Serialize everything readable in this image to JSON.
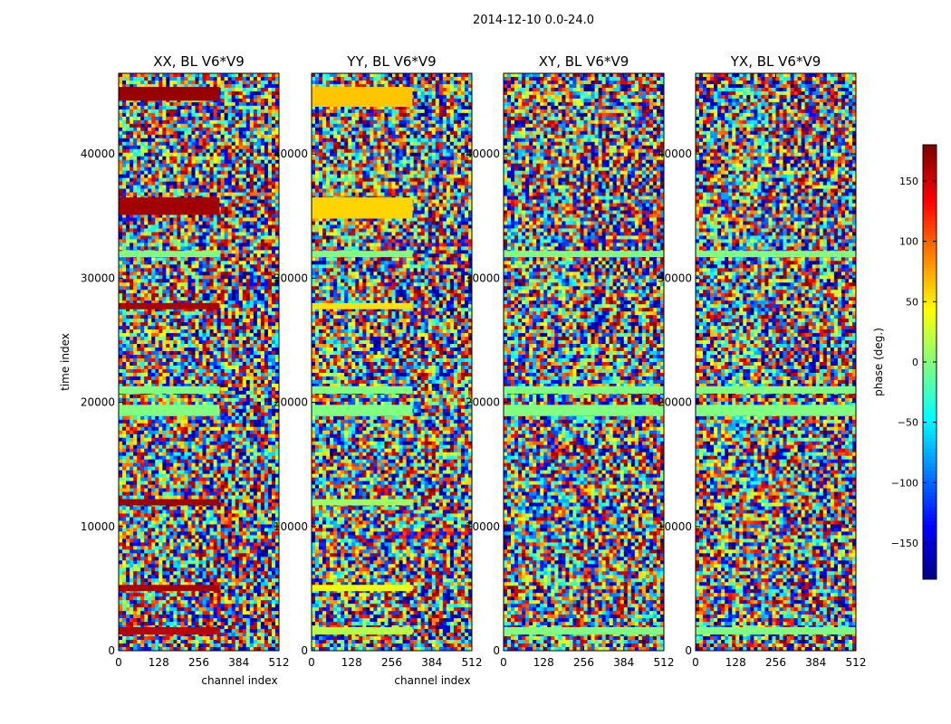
{
  "suptitle": "2014-12-10 0.0-24.0",
  "chart_data": [
    {
      "type": "heatmap",
      "title": "XX, BL V6*V9",
      "xlabel": "channel index",
      "ylabel": "time index",
      "xlim": [
        0,
        512
      ],
      "ylim": [
        0,
        46500
      ],
      "xticks": [
        0,
        128,
        256,
        384,
        512
      ],
      "yticks": [
        0,
        10000,
        20000,
        30000,
        40000
      ],
      "bands": [
        {
          "t0": 44300,
          "t1": 45400,
          "value": 172
        },
        {
          "t0": 35100,
          "t1": 36500,
          "value": 168
        },
        {
          "t0": 31700,
          "t1": 32200,
          "value": 0
        },
        {
          "t0": 27500,
          "t1": 28000,
          "value": 165
        },
        {
          "t0": 20700,
          "t1": 21300,
          "value": 0
        },
        {
          "t0": 18900,
          "t1": 19800,
          "value": 0
        },
        {
          "t0": 11700,
          "t1": 12200,
          "value": 170
        },
        {
          "t0": 4800,
          "t1": 5300,
          "value": 165
        },
        {
          "t0": 1300,
          "t1": 1900,
          "value": 160
        }
      ]
    },
    {
      "type": "heatmap",
      "title": "YY, BL V6*V9",
      "xlabel": "channel index",
      "ylabel": "",
      "xlim": [
        0,
        512
      ],
      "ylim": [
        0,
        46500
      ],
      "xticks": [
        0,
        128,
        256,
        384,
        512
      ],
      "yticks": [
        0,
        10000,
        20000,
        30000,
        40000
      ],
      "bands": [
        {
          "t0": 43800,
          "t1": 45400,
          "value": 65
        },
        {
          "t0": 34800,
          "t1": 36500,
          "value": 60
        },
        {
          "t0": 31700,
          "t1": 32200,
          "value": 0
        },
        {
          "t0": 27500,
          "t1": 28000,
          "value": 55
        },
        {
          "t0": 20700,
          "t1": 21300,
          "value": 0
        },
        {
          "t0": 18900,
          "t1": 19800,
          "value": 0
        },
        {
          "t0": 11700,
          "t1": 12200,
          "value": 10
        },
        {
          "t0": 4800,
          "t1": 5300,
          "value": 40
        },
        {
          "t0": 1300,
          "t1": 1900,
          "value": 20
        }
      ]
    },
    {
      "type": "heatmap",
      "title": "XY, BL V6*V9",
      "xlabel": "",
      "ylabel": "",
      "xlim": [
        0,
        512
      ],
      "ylim": [
        0,
        46500
      ],
      "xticks": [
        0,
        128,
        256,
        384,
        512
      ],
      "yticks": [
        0,
        10000,
        20000,
        30000,
        40000
      ],
      "bands": [
        {
          "t0": 31700,
          "t1": 32200,
          "value": 0
        },
        {
          "t0": 20700,
          "t1": 21300,
          "value": 0
        },
        {
          "t0": 18900,
          "t1": 19800,
          "value": 0
        },
        {
          "t0": 1300,
          "t1": 1900,
          "value": 0
        }
      ]
    },
    {
      "type": "heatmap",
      "title": "YX, BL V6*V9",
      "xlabel": "",
      "ylabel": "",
      "xlim": [
        0,
        512
      ],
      "ylim": [
        0,
        46500
      ],
      "xticks": [
        0,
        128,
        256,
        384,
        512
      ],
      "yticks": [
        0,
        10000,
        20000,
        30000,
        40000
      ],
      "bands": [
        {
          "t0": 31700,
          "t1": 32200,
          "value": 0
        },
        {
          "t0": 20700,
          "t1": 21300,
          "value": 0
        },
        {
          "t0": 18900,
          "t1": 19800,
          "value": 0
        },
        {
          "t0": 1300,
          "t1": 1900,
          "value": 0
        }
      ]
    }
  ],
  "colorbar": {
    "label": "phase (deg.)",
    "vmin": -180,
    "vmax": 180,
    "colormap": "jet",
    "ticks": [
      150,
      100,
      50,
      0,
      -50,
      -100,
      -150
    ],
    "tick_labels": [
      "150",
      "100",
      "50",
      "0",
      "−50",
      "−100",
      "−150"
    ]
  }
}
